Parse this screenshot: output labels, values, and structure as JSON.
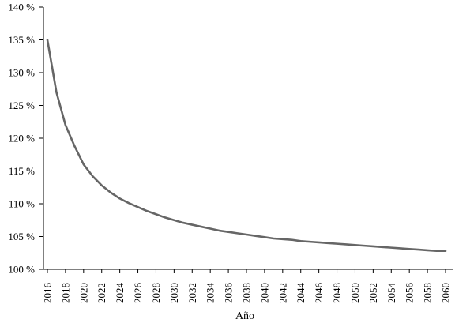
{
  "chart_data": {
    "type": "line",
    "title": "",
    "xlabel": "Año",
    "ylabel": "",
    "xlim": [
      2016,
      2060
    ],
    "ylim": [
      100,
      140
    ],
    "yticks": [
      100,
      105,
      110,
      115,
      120,
      125,
      130,
      135,
      140
    ],
    "ytick_suffix": " %",
    "xticks": [
      2016,
      2018,
      2020,
      2022,
      2024,
      2026,
      2028,
      2030,
      2032,
      2034,
      2036,
      2038,
      2040,
      2042,
      2044,
      2046,
      2048,
      2050,
      2052,
      2054,
      2056,
      2058,
      2060
    ],
    "grid": false,
    "legend": "none",
    "line_color": "#666666",
    "series": [
      {
        "x": [
          2016,
          2017,
          2018,
          2019,
          2020,
          2021,
          2022,
          2023,
          2024,
          2025,
          2026,
          2027,
          2028,
          2029,
          2030,
          2031,
          2032,
          2033,
          2034,
          2035,
          2036,
          2037,
          2038,
          2039,
          2040,
          2041,
          2042,
          2043,
          2044,
          2045,
          2046,
          2047,
          2048,
          2049,
          2050,
          2051,
          2052,
          2053,
          2054,
          2055,
          2056,
          2057,
          2058,
          2059,
          2060
        ],
        "values": [
          135.0,
          127.0,
          122.0,
          118.8,
          116.0,
          114.2,
          112.8,
          111.7,
          110.8,
          110.1,
          109.5,
          108.9,
          108.4,
          107.9,
          107.5,
          107.1,
          106.8,
          106.5,
          106.2,
          105.9,
          105.7,
          105.5,
          105.3,
          105.1,
          104.9,
          104.7,
          104.6,
          104.5,
          104.3,
          104.2,
          104.1,
          104.0,
          103.9,
          103.8,
          103.7,
          103.6,
          103.5,
          103.4,
          103.3,
          103.2,
          103.1,
          103.0,
          102.9,
          102.8,
          102.8
        ]
      }
    ]
  }
}
